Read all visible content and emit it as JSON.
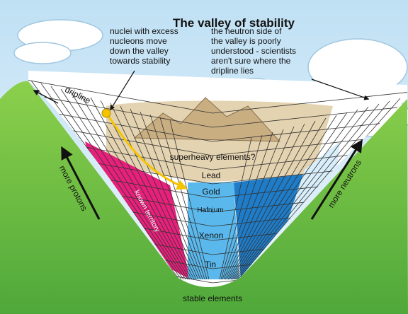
{
  "title": "The valley of stability",
  "annotations": [
    {
      "lines": [
        "nuclei with excess",
        "nucleons move",
        "down the valley",
        "towards stability"
      ]
    },
    {
      "lines": [
        "the neutron side of",
        "the valley is poorly",
        "understood - scientists",
        "aren't sure where the",
        "dripline lies"
      ]
    }
  ],
  "labels": {
    "dripline": "dripline",
    "superheavy": "superheavy elements?",
    "lead": "Lead",
    "gold": "Gold",
    "hafnium": "Hafnium",
    "xenon": "Xenon",
    "tin": "Tin",
    "known": "known territory",
    "protons": "more protons",
    "neutrons": "more neutrons",
    "stable": "stable elements"
  }
}
